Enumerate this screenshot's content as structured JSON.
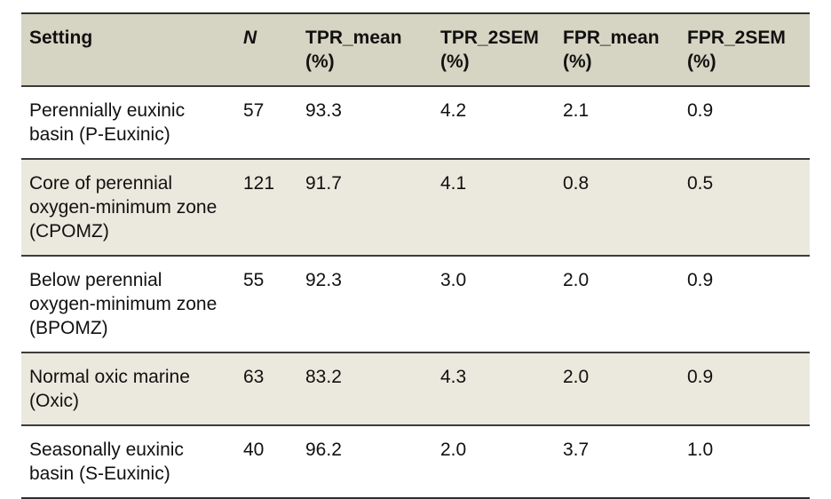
{
  "colors": {
    "header_bg": "#d6d4c2",
    "stripe_bg": "#ebe9dd",
    "rule_dark": "#2e2e2e",
    "text": "#111111"
  },
  "table": {
    "headers": {
      "setting": {
        "label": "Setting",
        "unit": ""
      },
      "n": {
        "label": "N",
        "unit": ""
      },
      "tpr_mean": {
        "label": "TPR_mean",
        "unit": "(%)"
      },
      "tpr_2sem": {
        "label": "TPR_2SEM",
        "unit": "(%)"
      },
      "fpr_mean": {
        "label": "FPR_mean",
        "unit": "(%)"
      },
      "fpr_2sem": {
        "label": "FPR_2SEM",
        "unit": "(%)"
      }
    },
    "rows": [
      {
        "setting": "Perennially euxinic basin (P-Euxinic)",
        "n": "57",
        "tpr_mean": "93.3",
        "tpr_2sem": "4.2",
        "fpr_mean": "2.1",
        "fpr_2sem": "0.9"
      },
      {
        "setting": "Core of perennial oxygen-minimum zone (CPOMZ)",
        "n": "121",
        "tpr_mean": "91.7",
        "tpr_2sem": "4.1",
        "fpr_mean": "0.8",
        "fpr_2sem": "0.5"
      },
      {
        "setting": "Below perennial oxygen-minimum zone (BPOMZ)",
        "n": "55",
        "tpr_mean": "92.3",
        "tpr_2sem": "3.0",
        "fpr_mean": "2.0",
        "fpr_2sem": "0.9"
      },
      {
        "setting": "Normal oxic marine (Oxic)",
        "n": "63",
        "tpr_mean": "83.2",
        "tpr_2sem": "4.3",
        "fpr_mean": "2.0",
        "fpr_2sem": "0.9"
      },
      {
        "setting": "Seasonally euxinic basin (S-Euxinic)",
        "n": "40",
        "tpr_mean": "96.2",
        "tpr_2sem": "2.0",
        "fpr_mean": "3.7",
        "fpr_2sem": "1.0"
      }
    ]
  },
  "chart_data": {
    "type": "table",
    "title": "",
    "columns": [
      "Setting",
      "N",
      "TPR_mean (%)",
      "TPR_2SEM (%)",
      "FPR_mean (%)",
      "FPR_2SEM (%)"
    ],
    "rows": [
      [
        "Perennially euxinic basin (P-Euxinic)",
        57,
        93.3,
        4.2,
        2.1,
        0.9
      ],
      [
        "Core of perennial oxygen-minimum zone (CPOMZ)",
        121,
        91.7,
        4.1,
        0.8,
        0.5
      ],
      [
        "Below perennial oxygen-minimum zone (BPOMZ)",
        55,
        92.3,
        3.0,
        2.0,
        0.9
      ],
      [
        "Normal oxic marine (Oxic)",
        63,
        83.2,
        4.3,
        2.0,
        0.9
      ],
      [
        "Seasonally euxinic basin (S-Euxinic)",
        40,
        96.2,
        2.0,
        3.7,
        1.0
      ]
    ]
  }
}
